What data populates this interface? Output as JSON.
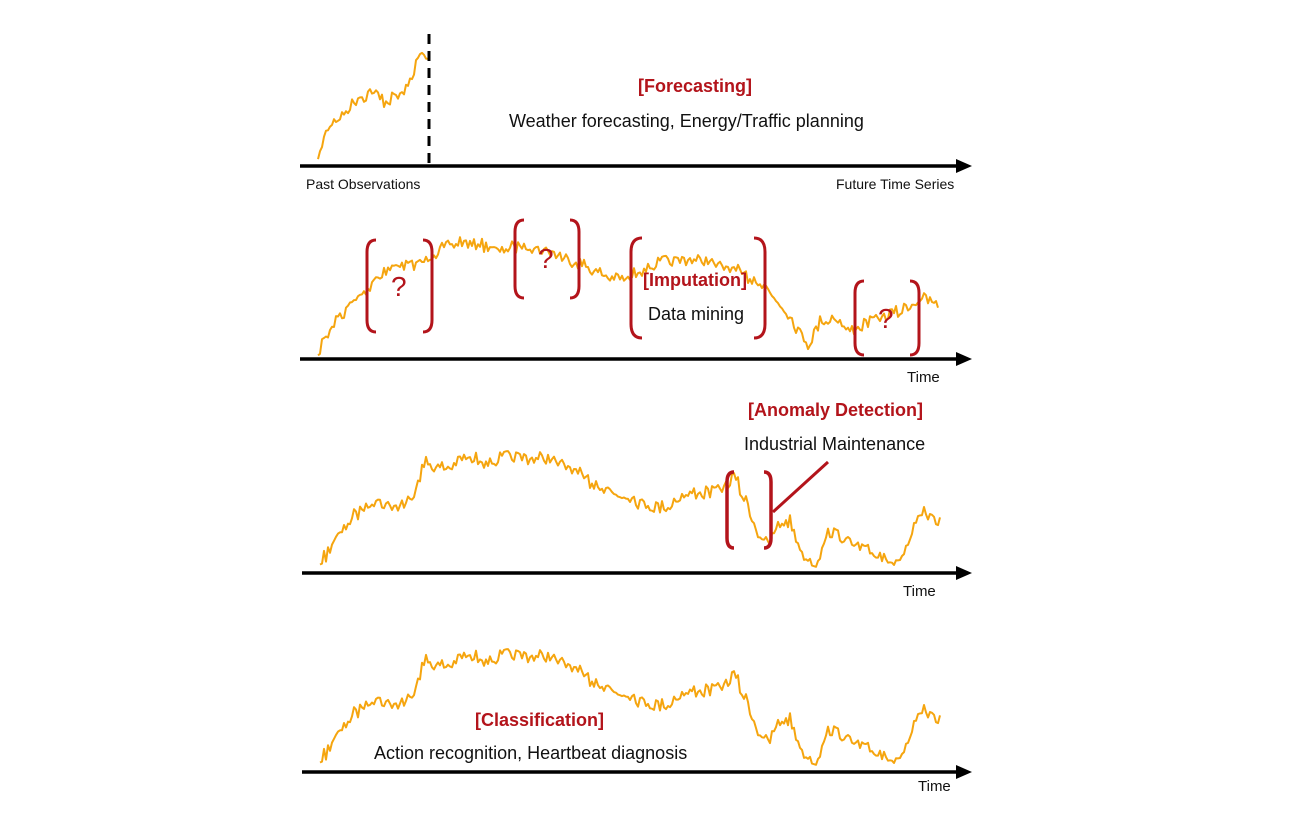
{
  "colors": {
    "series": "#f5a50f",
    "accent": "#b3141b",
    "axis": "#000000",
    "text": "#111111"
  },
  "forecasting": {
    "title": "[Forecasting]",
    "description": "Weather forecasting, Energy/Traffic planning",
    "axis_left_label": "Past Observations",
    "axis_right_label": "Future Time Series"
  },
  "imputation": {
    "title": "[Imputation]",
    "description": "Data mining",
    "missing_marker": "?",
    "axis_label": "Time"
  },
  "anomaly": {
    "title": "[Anomaly Detection]",
    "description": "Industrial Maintenance",
    "axis_label": "Time"
  },
  "classification": {
    "title": "[Classification]",
    "description": "Action recognition, Heartbeat diagnosis",
    "axis_label": "Time"
  }
}
